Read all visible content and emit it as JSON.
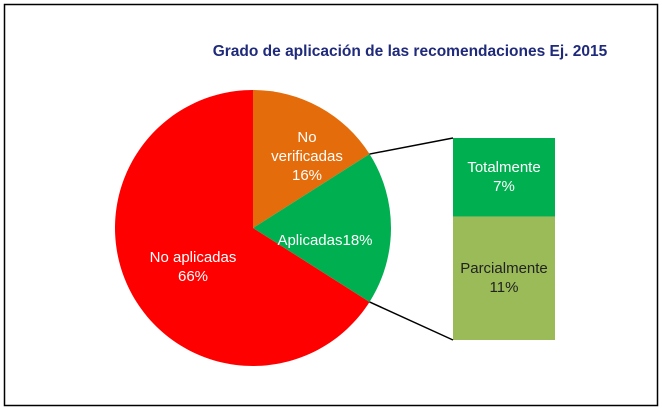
{
  "chart_data": {
    "type": "pie",
    "title": "Grado de aplicación de las recomendaciones Ej. 2015",
    "categories": [
      "No verificadas",
      "Aplicadas",
      "No aplicadas"
    ],
    "values": [
      16,
      18,
      66
    ],
    "value_labels": [
      "16%",
      "18%",
      "66%"
    ],
    "colors": [
      "#e46c0a",
      "#00b050",
      "#ff0000"
    ],
    "bar_of_pie": {
      "categories": [
        "Totalmente",
        "Parcialmente"
      ],
      "values": [
        7,
        11
      ],
      "value_labels": [
        "7%",
        "11%"
      ],
      "colors": [
        "#00b050",
        "#9bbb59"
      ]
    }
  }
}
